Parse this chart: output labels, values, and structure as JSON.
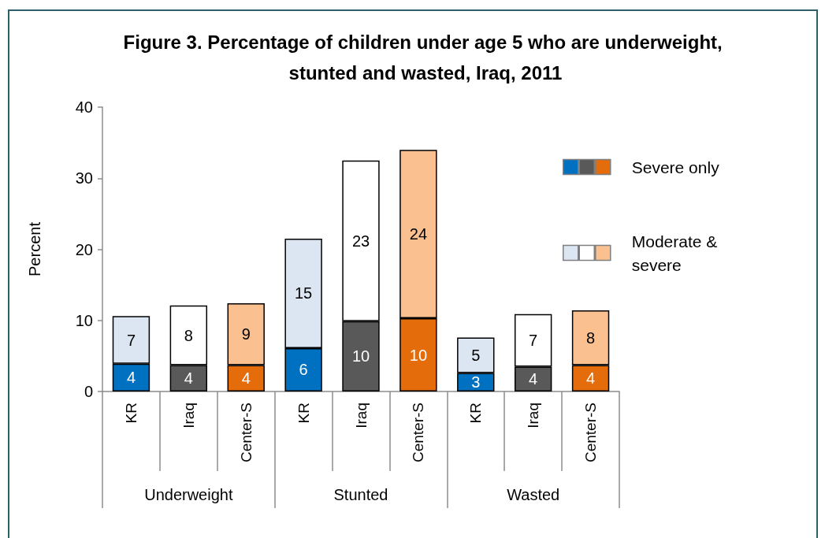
{
  "chart_data": {
    "type": "bar",
    "title": "Figure 3. Percentage of children under age 5 who are underweight, stunted and wasted, Iraq, 2011",
    "ylabel": "Percent",
    "categories": [
      "KR",
      "Iraq",
      "Center-S",
      "KR",
      "Iraq",
      "Center-S",
      "KR",
      "Iraq",
      "Center-S"
    ],
    "annotations": [
      "Underweight",
      "Stunted",
      "Wasted"
    ],
    "series": [
      {
        "name": "Severe only",
        "colors": [
          "#0070c0",
          "#595959",
          "#e46c0a",
          "#0070c0",
          "#595959",
          "#e46c0a",
          "#0070c0",
          "#595959",
          "#e46c0a"
        ],
        "values": [
          3.9,
          3.7,
          3.7,
          6.1,
          9.9,
          10.3,
          2.6,
          3.5,
          3.7
        ],
        "value_labels": [
          "4",
          "4",
          "4",
          "6",
          "10",
          "10",
          "3",
          "4",
          "4"
        ]
      },
      {
        "name": "Moderate & severe",
        "colors": [
          "#dce6f2",
          "#ffffff",
          "#fac090",
          "#dce6f2",
          "#ffffff",
          "#fac090",
          "#dce6f2",
          "#ffffff",
          "#fac090"
        ],
        "values": [
          6.7,
          8.4,
          8.7,
          15.4,
          22.6,
          23.7,
          5.0,
          7.4,
          7.7
        ],
        "value_labels": [
          "7",
          "8",
          "9",
          "15",
          "23",
          "24",
          "5",
          "7",
          "8"
        ]
      }
    ],
    "stacked": true,
    "ylim": [
      0,
      40
    ],
    "yticks": [
      0,
      10,
      20,
      30,
      40
    ],
    "legend": "right"
  }
}
